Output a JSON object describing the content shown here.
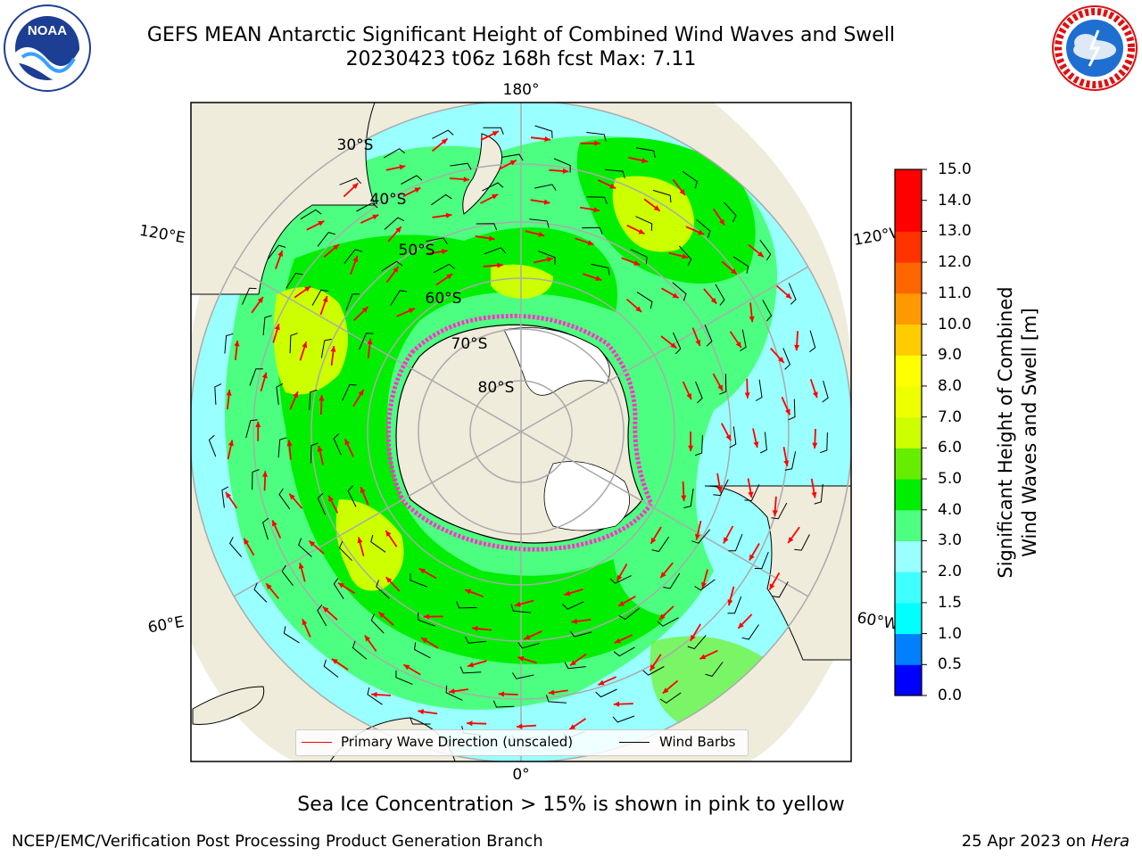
{
  "title": {
    "line1": "GEFS MEAN Antarctic Significant Height of Combined Wind Waves and Swell",
    "line2": "20230423 t06z 168h fcst   Max: 7.11"
  },
  "logos": {
    "left": "NOAA",
    "right": "NATIONAL WEATHER SERVICE"
  },
  "map": {
    "projection": "south-polar-stereographic",
    "longitude_labels": {
      "top": "180°",
      "bottom": "0°",
      "upper_left": "120°E",
      "upper_right": "120°W",
      "lower_left": "60°E",
      "lower_right": "60°W"
    },
    "latitude_labels": [
      "30°S",
      "40°S",
      "50°S",
      "60°S",
      "70°S",
      "80°S"
    ],
    "land_color": "#efecdc",
    "ice_color": "#ffffff",
    "sea_ice_edge_color": "#ff33cc"
  },
  "colorbar": {
    "title_line1": "Significant Height of Combined",
    "title_line2": "Wind Waves and Swell [m]",
    "ticks": [
      "0.0",
      "0.5",
      "1.0",
      "1.5",
      "2.0",
      "3.0",
      "4.0",
      "5.0",
      "6.0",
      "7.0",
      "8.0",
      "9.0",
      "10.0",
      "11.0",
      "12.0",
      "13.0",
      "14.0",
      "15.0"
    ],
    "colors": [
      "#0000ff",
      "#0080ff",
      "#00ffff",
      "#40ffff",
      "#99ffff",
      "#4dff80",
      "#00ee00",
      "#66ee00",
      "#ccff00",
      "#eeff00",
      "#ffff00",
      "#ffcc00",
      "#ff9900",
      "#ff6600",
      "#ff3300",
      "#ff0000",
      "#ff0000"
    ]
  },
  "legend": {
    "wave_direction": "Primary Wave Direction (unscaled)",
    "wind_barbs": "Wind Barbs",
    "arrow_color": "#ff0000"
  },
  "footer": {
    "note": "Sea Ice Concentration > 15% is shown in pink to yellow",
    "credit": "NCEP/EMC/Verification Post Processing Product Generation Branch",
    "date": "25 Apr 2023 on ",
    "machine": "Hera"
  }
}
